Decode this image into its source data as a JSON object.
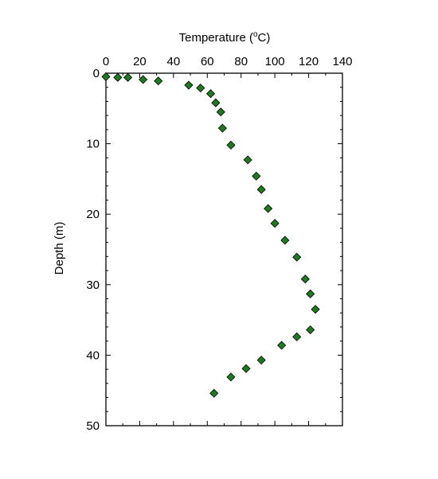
{
  "chart_data": {
    "type": "scatter",
    "xlabel": "Temperature (°C)",
    "xlabel_parts": {
      "pre": "Temperature (",
      "sup": "o",
      "post": "C)"
    },
    "ylabel": "Depth (m)",
    "xlim": [
      0,
      140
    ],
    "ylim": [
      0,
      50
    ],
    "x_axis_position": "top",
    "y_axis_inverted": true,
    "grid": false,
    "x_ticks": [
      0,
      20,
      40,
      60,
      80,
      100,
      120,
      140
    ],
    "y_ticks": [
      0,
      10,
      20,
      30,
      40,
      50
    ],
    "marker": "diamond",
    "marker_color": "#1e7a1e",
    "series": [
      {
        "points": [
          {
            "x": 0,
            "y": 0.5
          },
          {
            "x": 7,
            "y": 0.6
          },
          {
            "x": 13,
            "y": 0.6
          },
          {
            "x": 22,
            "y": 0.9
          },
          {
            "x": 31,
            "y": 1.1
          },
          {
            "x": 49,
            "y": 1.7
          },
          {
            "x": 56,
            "y": 2.1
          },
          {
            "x": 62,
            "y": 2.9
          },
          {
            "x": 65,
            "y": 4.2
          },
          {
            "x": 68,
            "y": 5.5
          },
          {
            "x": 69,
            "y": 7.8
          },
          {
            "x": 74,
            "y": 10.2
          },
          {
            "x": 84,
            "y": 12.3
          },
          {
            "x": 89,
            "y": 14.6
          },
          {
            "x": 92,
            "y": 16.5
          },
          {
            "x": 96,
            "y": 19.2
          },
          {
            "x": 100,
            "y": 21.3
          },
          {
            "x": 106,
            "y": 23.7
          },
          {
            "x": 113,
            "y": 26.1
          },
          {
            "x": 118,
            "y": 29.2
          },
          {
            "x": 121,
            "y": 31.3
          },
          {
            "x": 124,
            "y": 33.5
          },
          {
            "x": 121,
            "y": 36.4
          },
          {
            "x": 113,
            "y": 37.4
          },
          {
            "x": 104,
            "y": 38.6
          },
          {
            "x": 92,
            "y": 40.7
          },
          {
            "x": 83,
            "y": 41.9
          },
          {
            "x": 74,
            "y": 43.1
          },
          {
            "x": 64,
            "y": 45.4
          }
        ]
      }
    ]
  }
}
